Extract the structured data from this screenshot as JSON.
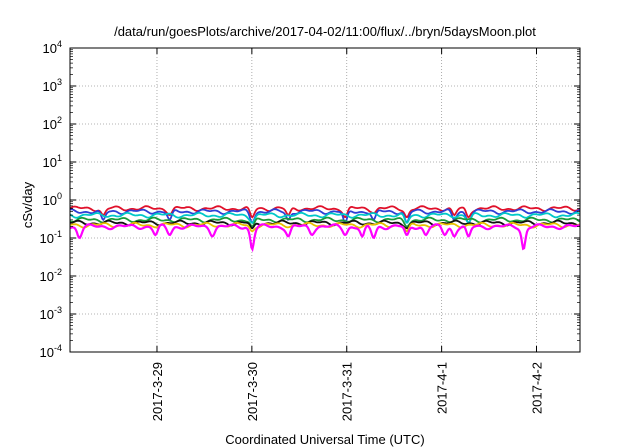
{
  "chart_data": {
    "type": "line",
    "title": "/data/run/goesPlots/archive/2017-04-02/11:00/flux/../bryn/5daysMoon.plot",
    "xlabel": "Coordinated Universal Time (UTC)",
    "ylabel": "cSv/day",
    "yscale": "log",
    "ylim": [
      0.0001,
      10000
    ],
    "xlim": [
      "2017-03-28 02:00",
      "2017-04-02 11:00"
    ],
    "grid": true,
    "x_ticks": [
      "2017-3-29",
      "2017-3-30",
      "2017-3-31",
      "2017-4-1",
      "2017-4-2"
    ],
    "y_ticks": [
      {
        "base": "10",
        "exp": "-4"
      },
      {
        "base": "10",
        "exp": "-3"
      },
      {
        "base": "10",
        "exp": "-2"
      },
      {
        "base": "10",
        "exp": "-1"
      },
      {
        "base": "10",
        "exp": "0"
      },
      {
        "base": "10",
        "exp": "1"
      },
      {
        "base": "10",
        "exp": "2"
      },
      {
        "base": "10",
        "exp": "3"
      },
      {
        "base": "10",
        "exp": "4"
      }
    ],
    "series": [
      {
        "color": "#e0102a",
        "baseline": 0.6,
        "dips": [
          [
            0.35,
            0.4
          ],
          [
            1.05,
            0.4
          ],
          [
            1.92,
            0.35
          ],
          [
            2.3,
            0.4
          ],
          [
            2.9,
            0.35
          ],
          [
            3.2,
            0.45
          ],
          [
            3.55,
            0.35
          ],
          [
            4.05,
            0.4
          ],
          [
            4.2,
            0.35
          ]
        ]
      },
      {
        "color": "#2d3fd6",
        "baseline": 0.5,
        "dips": [
          [
            0.35,
            0.3
          ],
          [
            1.05,
            0.3
          ],
          [
            1.92,
            0.25
          ],
          [
            2.3,
            0.3
          ],
          [
            2.9,
            0.25
          ],
          [
            3.2,
            0.3
          ],
          [
            3.55,
            0.25
          ],
          [
            4.05,
            0.3
          ],
          [
            4.2,
            0.25
          ]
        ]
      },
      {
        "color": "#00c8c8",
        "baseline": 0.4,
        "dips": [
          [
            1.92,
            0.25
          ],
          [
            3.55,
            0.25
          ],
          [
            4.2,
            0.25
          ]
        ]
      },
      {
        "color": "#1a9a3a",
        "baseline": 0.3,
        "dips": [
          [
            1.92,
            0.2
          ],
          [
            3.55,
            0.2
          ]
        ]
      },
      {
        "color": "#111111",
        "baseline": 0.25,
        "dips": [
          [
            1.92,
            0.18
          ],
          [
            3.55,
            0.18
          ]
        ]
      },
      {
        "color": "#e8c000",
        "baseline": 0.22,
        "dips": [
          [
            1.92,
            0.15
          ],
          [
            3.55,
            0.15
          ]
        ]
      },
      {
        "color": "#ff00ff",
        "baseline": 0.2,
        "dips": [
          [
            0.1,
            0.1
          ],
          [
            0.9,
            0.12
          ],
          [
            1.05,
            0.12
          ],
          [
            1.5,
            0.11
          ],
          [
            1.92,
            0.05
          ],
          [
            2.3,
            0.11
          ],
          [
            2.55,
            0.12
          ],
          [
            2.9,
            0.12
          ],
          [
            3.08,
            0.11
          ],
          [
            3.2,
            0.1
          ],
          [
            3.55,
            0.12
          ],
          [
            3.75,
            0.12
          ],
          [
            3.95,
            0.12
          ],
          [
            4.05,
            0.11
          ],
          [
            4.2,
            0.11
          ],
          [
            4.78,
            0.05
          ]
        ]
      }
    ]
  }
}
